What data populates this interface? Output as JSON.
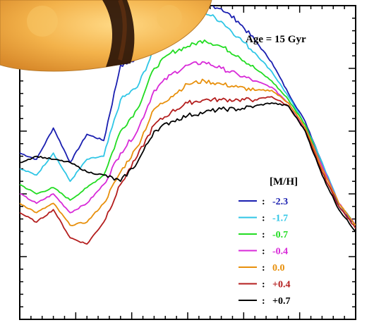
{
  "chart_data": {
    "type": "line",
    "title": "",
    "xlabel": "",
    "ylabel": "",
    "annotation": "Age = 15 Gyr",
    "legend": {
      "title": "[M/H]",
      "separator": ":",
      "placement": "bottom-right"
    },
    "x": [
      0,
      5,
      10,
      15,
      20,
      25,
      30,
      35,
      40,
      45,
      50,
      55,
      60,
      65,
      70,
      75,
      80,
      85,
      90,
      95,
      100
    ],
    "xlim": [
      0,
      100
    ],
    "ylim": [
      0,
      100
    ],
    "series": [
      {
        "name": "-2.3",
        "color": "#1a1fb0",
        "values": [
          53,
          51,
          61,
          50,
          59,
          57,
          81,
          83,
          90,
          95,
          99,
          101,
          99,
          95,
          89,
          82,
          72,
          63,
          50,
          36,
          30
        ]
      },
      {
        "name": "-1.7",
        "color": "#2fc6e6",
        "values": [
          48,
          46,
          53,
          44,
          51,
          52,
          70,
          74,
          86,
          91,
          96,
          98,
          95,
          90,
          85,
          79,
          71,
          62,
          50,
          37,
          30
        ]
      },
      {
        "name": "-0.7",
        "color": "#22dc22",
        "values": [
          43,
          40,
          42,
          38,
          42,
          46,
          60,
          67,
          80,
          85,
          87,
          89,
          87,
          84,
          80,
          76,
          70,
          62,
          49,
          37,
          30
        ]
      },
      {
        "name": "-0.4",
        "color": "#d82ad8",
        "values": [
          40,
          37,
          40,
          34,
          37,
          43,
          53,
          60,
          73,
          78,
          81,
          82,
          80,
          78,
          76,
          74,
          69,
          61,
          49,
          37,
          30
        ]
      },
      {
        "name": "0.0",
        "color": "#e8900c",
        "values": [
          37,
          34,
          37,
          30,
          31,
          37,
          47,
          55,
          67,
          71,
          75,
          76,
          75,
          74,
          73,
          73,
          69,
          61,
          48,
          37,
          30
        ]
      },
      {
        "name": "+0.4",
        "color": "#b41e1e",
        "values": [
          34,
          31,
          35,
          26,
          24,
          31,
          43,
          52,
          62,
          66,
          69,
          70,
          70,
          70,
          70,
          71,
          68,
          60,
          47,
          36,
          29
        ]
      },
      {
        "name": "+0.7",
        "color": "#000000",
        "values": [
          50,
          52,
          51,
          50,
          47,
          46,
          44,
          50,
          60,
          63,
          65,
          66,
          67,
          67,
          68,
          69,
          68,
          60,
          46,
          35,
          28
        ]
      }
    ]
  },
  "decor": {
    "sun_icon": "sun-image"
  }
}
